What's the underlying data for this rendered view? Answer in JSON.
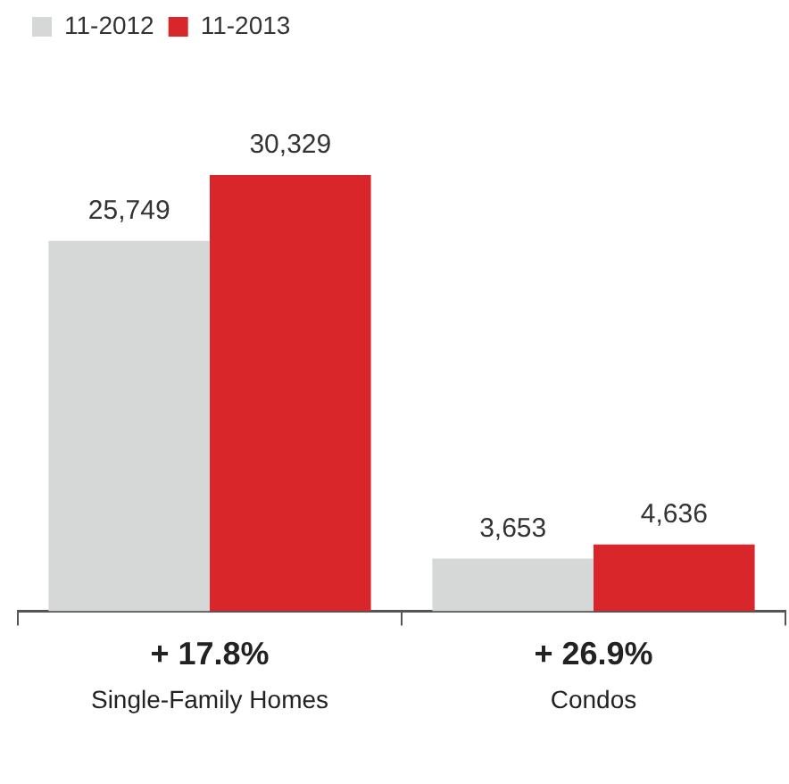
{
  "chart_data": {
    "type": "bar",
    "categories": [
      "Single-Family Homes",
      "Condos"
    ],
    "series": [
      {
        "name": "11-2012",
        "color": "#d5d8d6",
        "values": [
          25749,
          3653
        ],
        "value_labels": [
          "25,749",
          "3,653"
        ]
      },
      {
        "name": "11-2013",
        "color": "#d8262b",
        "values": [
          30329,
          4636
        ],
        "value_labels": [
          "30,329",
          "4,636"
        ]
      }
    ],
    "grid": false,
    "legend": "top left",
    "tick_labels": "x",
    "annotations": [
      "+ 17.8%",
      "+ 26.9%"
    ]
  }
}
